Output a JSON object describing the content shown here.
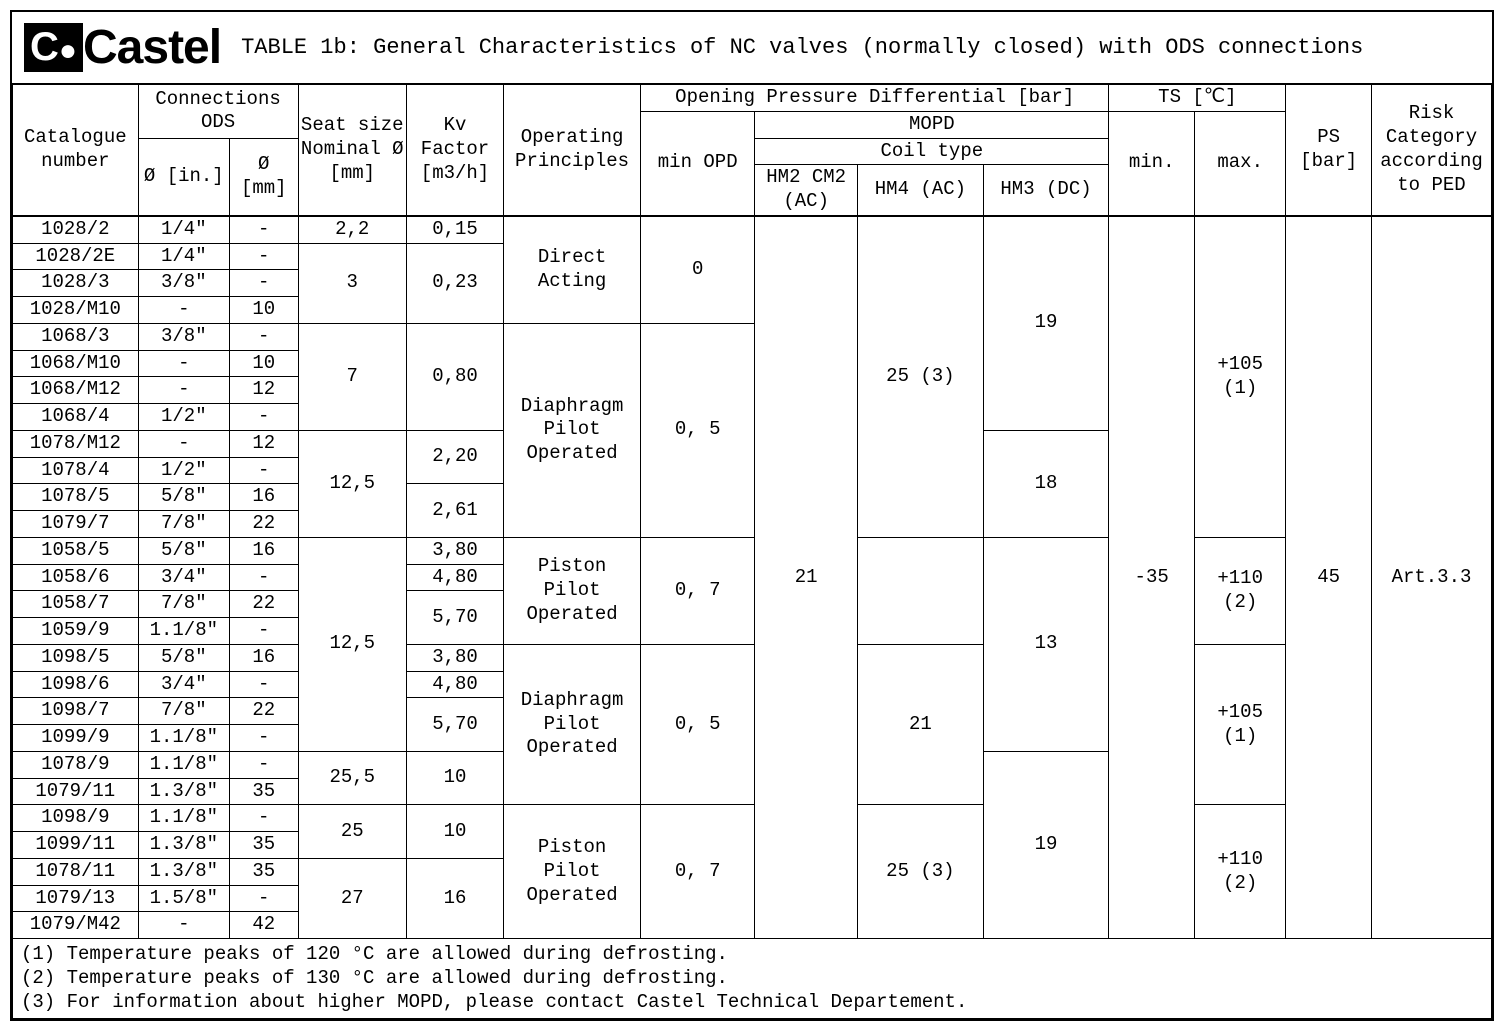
{
  "brand": "Castel",
  "title": "TABLE 1b: General Characteristics of NC valves (normally closed) with ODS connections",
  "headers": {
    "catalogue": "Catalogue number",
    "connections": "Connections ODS",
    "conn_in": "Ø [in.]",
    "conn_mm": "Ø [mm]",
    "seat": "Seat size Nominal Ø [mm]",
    "kv": "Kv Factor [m3/h]",
    "operating": "Operating Principles",
    "opd_group": "Opening Pressure Differential [bar]",
    "min_opd": "min OPD",
    "mopd": "MOPD",
    "coil_type": "Coil type",
    "hm2": "HM2 CM2 (AC)",
    "hm4": "HM4 (AC)",
    "hm3": "HM3 (DC)",
    "ts": "TS [℃]",
    "ts_min": "min.",
    "ts_max": "max.",
    "ps": "PS [bar]",
    "risk": "Risk Category according to PED"
  },
  "rows": [
    {
      "cat": "1028/2",
      "in": "1/4\"",
      "mm": "-"
    },
    {
      "cat": "1028/2E",
      "in": "1/4\"",
      "mm": "-"
    },
    {
      "cat": "1028/3",
      "in": "3/8\"",
      "mm": "-"
    },
    {
      "cat": "1028/M10",
      "in": "-",
      "mm": "10"
    },
    {
      "cat": "1068/3",
      "in": "3/8\"",
      "mm": "-"
    },
    {
      "cat": "1068/M10",
      "in": "-",
      "mm": "10"
    },
    {
      "cat": "1068/M12",
      "in": "-",
      "mm": "12"
    },
    {
      "cat": "1068/4",
      "in": "1/2\"",
      "mm": "-"
    },
    {
      "cat": "1078/M12",
      "in": "-",
      "mm": "12"
    },
    {
      "cat": "1078/4",
      "in": "1/2\"",
      "mm": "-"
    },
    {
      "cat": "1078/5",
      "in": "5/8\"",
      "mm": "16"
    },
    {
      "cat": "1079/7",
      "in": "7/8\"",
      "mm": "22"
    },
    {
      "cat": "1058/5",
      "in": "5/8\"",
      "mm": "16"
    },
    {
      "cat": "1058/6",
      "in": "3/4\"",
      "mm": "-"
    },
    {
      "cat": "1058/7",
      "in": "7/8\"",
      "mm": "22"
    },
    {
      "cat": "1059/9",
      "in": "1.1/8\"",
      "mm": "-"
    },
    {
      "cat": "1098/5",
      "in": "5/8\"",
      "mm": "16"
    },
    {
      "cat": "1098/6",
      "in": "3/4\"",
      "mm": "-"
    },
    {
      "cat": "1098/7",
      "in": "7/8\"",
      "mm": "22"
    },
    {
      "cat": "1099/9",
      "in": "1.1/8\"",
      "mm": "-"
    },
    {
      "cat": "1078/9",
      "in": "1.1/8\"",
      "mm": "-"
    },
    {
      "cat": "1079/11",
      "in": "1.3/8\"",
      "mm": "35"
    },
    {
      "cat": "1098/9",
      "in": "1.1/8\"",
      "mm": "-"
    },
    {
      "cat": "1099/11",
      "in": "1.3/8\"",
      "mm": "35"
    },
    {
      "cat": "1078/11",
      "in": "1.3/8\"",
      "mm": "35"
    },
    {
      "cat": "1079/13",
      "in": "1.5/8\"",
      "mm": "-"
    },
    {
      "cat": "1079/M42",
      "in": "-",
      "mm": "42"
    }
  ],
  "seat": {
    "s22": "2,2",
    "s3": "3",
    "s7": "7",
    "s125": "12,5",
    "s125b": "12,5",
    "s255": "25,5",
    "s25": "25",
    "s27": "27"
  },
  "kv": {
    "k015": "0,15",
    "k023": "0,23",
    "k080": "0,80",
    "k220": "2,20",
    "k261": "2,61",
    "k380": "3,80",
    "k480": "4,80",
    "k570": "5,70",
    "k10": "10",
    "k16": "16"
  },
  "op": {
    "direct": "Direct Acting",
    "diaphragm": "Diaphragm Pilot Operated",
    "piston": "Piston Pilot Operated"
  },
  "opd": {
    "zero": "0",
    "p05": "0, 5",
    "p07": "0, 7"
  },
  "mopd_vals": {
    "v21": "21",
    "v25": "25 (3)",
    "v21b": "21",
    "v19": "19",
    "v18": "18",
    "v13": "13",
    "v19b": "19"
  },
  "ts_vals": {
    "min": "-35",
    "max105": "+105 (1)",
    "max110": "+110 (2)"
  },
  "ps_val": "45",
  "risk_val": "Art.3.3",
  "footnotes": [
    "(1) Temperature peaks of 120 °C are allowed during defrosting.",
    "(2) Temperature peaks of 130 °C are allowed during defrosting.",
    "(3) For information about higher MOPD, please contact Castel Technical Departement."
  ]
}
